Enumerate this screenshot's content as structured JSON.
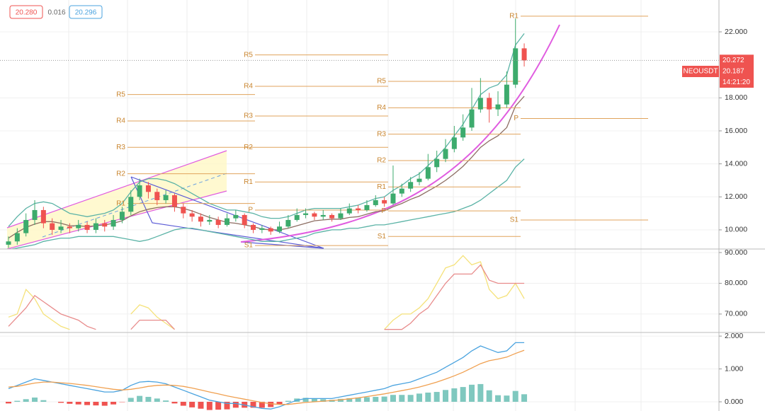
{
  "header": {
    "bid": "20.280",
    "spread": "0.016",
    "ask": "20.296"
  },
  "chart_data": [
    {
      "type": "candlestick",
      "symbol": "NEOUSDT",
      "last_price": 20.272,
      "second_price": 20.187,
      "countdown": "14:21:20",
      "colors": {
        "up": "#3dab6d",
        "down": "#ef5350"
      },
      "open": [
        9.1,
        9.3,
        9.8,
        10.6,
        11.2,
        10.4,
        10.0,
        10.2,
        10.1,
        10.3,
        10.0,
        10.4,
        10.2,
        10.6,
        11.1,
        12.0,
        12.7,
        12.3,
        11.8,
        12.1,
        11.4,
        11.0,
        10.8,
        10.5,
        10.6,
        10.3,
        10.7,
        10.9,
        10.3,
        10.0,
        10.1,
        9.9,
        10.2,
        10.6,
        10.9,
        11.0,
        10.8,
        10.9,
        10.7,
        11.0,
        11.3,
        11.2,
        11.5,
        11.8,
        11.6,
        12.2,
        12.5,
        12.9,
        13.1,
        13.8,
        14.3,
        14.9,
        15.6,
        16.2,
        17.3,
        18.0,
        17.3,
        17.6,
        18.8,
        21.0
      ],
      "high": [
        9.6,
        10.1,
        11.0,
        11.8,
        11.4,
        10.7,
        10.6,
        10.4,
        10.6,
        10.5,
        10.7,
        10.6,
        10.9,
        11.4,
        12.4,
        13.1,
        12.9,
        12.5,
        12.4,
        12.2,
        11.6,
        11.2,
        11.0,
        10.9,
        10.8,
        11.0,
        11.2,
        11.0,
        10.4,
        10.3,
        10.2,
        10.5,
        10.9,
        11.3,
        11.3,
        11.1,
        11.2,
        11.0,
        11.3,
        11.6,
        11.5,
        11.8,
        12.1,
        12.0,
        13.9,
        12.8,
        13.2,
        13.5,
        14.6,
        14.8,
        15.5,
        16.3,
        17.0,
        18.6,
        19.2,
        18.3,
        18.4,
        19.6,
        22.8,
        21.3
      ],
      "low": [
        8.9,
        9.1,
        9.6,
        10.3,
        10.1,
        9.7,
        9.8,
        9.8,
        9.9,
        9.8,
        9.8,
        9.9,
        10.0,
        10.4,
        10.9,
        11.8,
        11.9,
        11.5,
        11.6,
        11.1,
        10.7,
        10.5,
        10.2,
        10.3,
        10.1,
        10.2,
        10.5,
        10.1,
        9.8,
        9.8,
        9.7,
        9.8,
        10.1,
        10.5,
        10.7,
        10.6,
        10.6,
        10.5,
        10.6,
        10.9,
        11.0,
        11.1,
        11.4,
        11.4,
        11.5,
        12.0,
        12.3,
        12.7,
        13.0,
        13.5,
        14.1,
        14.7,
        15.4,
        16.0,
        17.1,
        16.5,
        16.9,
        17.4,
        18.6,
        19.9
      ],
      "close": [
        9.3,
        9.8,
        10.6,
        11.2,
        10.4,
        10.0,
        10.2,
        10.1,
        10.3,
        10.0,
        10.4,
        10.2,
        10.6,
        11.1,
        12.0,
        12.7,
        12.3,
        11.8,
        12.1,
        11.4,
        11.0,
        10.8,
        10.5,
        10.6,
        10.3,
        10.7,
        10.9,
        10.3,
        10.0,
        10.1,
        9.9,
        10.2,
        10.6,
        10.9,
        11.0,
        10.8,
        10.9,
        10.7,
        11.0,
        11.3,
        11.2,
        11.5,
        11.8,
        11.6,
        12.2,
        12.5,
        12.9,
        13.1,
        13.8,
        14.3,
        14.9,
        15.6,
        16.2,
        17.3,
        18.0,
        17.3,
        17.6,
        18.8,
        21.0,
        20.272
      ],
      "series": [
        {
          "color": "#5bb3a6",
          "values": [
            10.2,
            10.8,
            11.3,
            11.6,
            11.7,
            11.6,
            11.3,
            11.0,
            10.9,
            10.8,
            10.9,
            11.0,
            11.2,
            11.6,
            12.3,
            12.9,
            13.1,
            13.1,
            13.0,
            12.8,
            12.5,
            12.2,
            11.9,
            11.6,
            11.4,
            11.2,
            11.2,
            11.1,
            11.0,
            10.8,
            10.7,
            10.7,
            10.8,
            11.0,
            11.2,
            11.3,
            11.3,
            11.3,
            11.3,
            11.4,
            11.5,
            11.7,
            11.9,
            12.0,
            12.4,
            12.7,
            13.1,
            13.4,
            13.9,
            14.4,
            15.0,
            15.7,
            16.4,
            17.3,
            18.2,
            18.6,
            18.8,
            19.4,
            21.2,
            21.9
          ]
        },
        {
          "color": "#8d6e63",
          "values": [
            9.5,
            9.85,
            10.15,
            10.35,
            10.5,
            10.5,
            10.4,
            10.25,
            10.25,
            10.2,
            10.25,
            10.3,
            10.4,
            10.55,
            10.85,
            11.1,
            11.25,
            11.35,
            11.4,
            11.4,
            11.3,
            11.15,
            10.95,
            10.75,
            10.6,
            10.45,
            10.4,
            10.3,
            10.2,
            10.05,
            10.0,
            10.0,
            10.1,
            10.25,
            10.4,
            10.55,
            10.6,
            10.65,
            10.65,
            10.75,
            10.8,
            10.95,
            11.1,
            11.15,
            11.4,
            11.6,
            11.85,
            12.05,
            12.35,
            12.65,
            13.0,
            13.4,
            13.85,
            14.4,
            15.0,
            15.4,
            15.7,
            16.2,
            17.5,
            18.1
          ]
        },
        {
          "color": "#5bb3a6",
          "values": [
            8.8,
            8.9,
            9.0,
            9.1,
            9.3,
            9.4,
            9.5,
            9.5,
            9.6,
            9.6,
            9.6,
            9.6,
            9.6,
            9.5,
            9.4,
            9.3,
            9.4,
            9.6,
            9.8,
            10.0,
            10.1,
            10.1,
            10.0,
            9.9,
            9.8,
            9.7,
            9.6,
            9.5,
            9.4,
            9.3,
            9.3,
            9.3,
            9.4,
            9.5,
            9.6,
            9.8,
            9.9,
            10.0,
            10.0,
            10.1,
            10.1,
            10.2,
            10.3,
            10.3,
            10.4,
            10.5,
            10.6,
            10.7,
            10.8,
            10.9,
            11.0,
            11.1,
            11.3,
            11.5,
            11.8,
            12.2,
            12.6,
            13.0,
            13.8,
            14.3
          ]
        }
      ],
      "pivot_color": "#e0a35c",
      "pivots": [
        {
          "levels": [
            {
              "name": "R5",
              "value": 18.2
            },
            {
              "name": "R4",
              "value": 16.6
            },
            {
              "name": "R3",
              "value": 15.0
            },
            {
              "name": "R2",
              "value": 13.4
            },
            {
              "name": "R1",
              "value": 11.6
            }
          ]
        },
        {
          "levels": [
            {
              "name": "R5",
              "value": 20.6
            },
            {
              "name": "R4",
              "value": 18.7
            },
            {
              "name": "R3",
              "value": 16.9
            },
            {
              "name": "R2",
              "value": 15.0
            },
            {
              "name": "R1",
              "value": 12.9
            },
            {
              "name": "P",
              "value": 11.2
            },
            {
              "name": "S1",
              "value": 9.05
            }
          ]
        },
        {
          "levels": [
            {
              "name": "R5",
              "value": 19.0
            },
            {
              "name": "R4",
              "value": 17.4
            },
            {
              "name": "R3",
              "value": 15.8
            },
            {
              "name": "R2",
              "value": 14.2
            },
            {
              "name": "R1",
              "value": 12.6
            },
            {
              "name": "P",
              "value": 11.15
            },
            {
              "name": "S1",
              "value": 9.6
            }
          ]
        },
        {
          "levels": [
            {
              "name": "R1",
              "value": 22.95
            },
            {
              "name": "P",
              "value": 16.75
            },
            {
              "name": "S1",
              "value": 10.6
            }
          ]
        }
      ],
      "ylim": [
        8.84,
        23.93
      ],
      "yticks": [
        {
          "value": 22,
          "label": "22.000"
        },
        {
          "value": 18,
          "label": "18.000"
        },
        {
          "value": 16,
          "label": "16.000"
        },
        {
          "value": 14,
          "label": "14.000"
        },
        {
          "value": 12,
          "label": "12.000"
        },
        {
          "value": 10,
          "label": "10.000"
        }
      ]
    },
    {
      "type": "line",
      "ylim": [
        64,
        91.15
      ],
      "yticks": [
        {
          "value": 90,
          "label": "90.000"
        },
        {
          "value": 80,
          "label": "80.000"
        },
        {
          "value": 70,
          "label": "70.000"
        }
      ],
      "series": [
        {
          "color": "#f5e27a",
          "values": [
            69,
            70,
            78,
            75,
            70,
            68,
            66,
            65,
            null,
            null,
            null,
            null,
            null,
            null,
            70,
            73,
            72,
            69,
            67,
            65,
            null,
            null,
            null,
            null,
            null,
            null,
            null,
            null,
            null,
            null,
            null,
            null,
            null,
            null,
            null,
            null,
            null,
            null,
            null,
            null,
            null,
            null,
            null,
            65,
            68,
            70,
            70,
            72,
            75,
            80,
            85,
            86,
            89,
            86,
            87,
            78,
            75,
            76,
            80,
            75
          ]
        },
        {
          "color": "#e88c8c",
          "values": [
            66,
            69,
            72,
            76,
            74,
            72,
            70,
            69,
            68,
            66,
            65,
            null,
            null,
            null,
            65,
            68,
            68,
            68,
            68,
            65,
            null,
            null,
            null,
            null,
            null,
            null,
            null,
            null,
            null,
            null,
            null,
            null,
            null,
            null,
            null,
            null,
            null,
            null,
            null,
            null,
            null,
            null,
            null,
            65,
            65,
            65,
            67,
            70,
            72,
            76,
            80,
            83,
            83,
            83,
            86,
            81,
            80,
            80,
            80,
            80
          ]
        }
      ]
    },
    {
      "type": "macd",
      "ylim": [
        -0.28,
        2.11
      ],
      "yticks": [
        {
          "value": 2,
          "label": "2.000"
        },
        {
          "value": 1,
          "label": "1.000"
        },
        {
          "value": 0,
          "label": "0.000"
        }
      ],
      "colors": {
        "up": "#7fc8bf",
        "down": "#ef5350"
      },
      "histogram": [
        -0.05,
        0.03,
        0.08,
        0.13,
        0.05,
        0,
        -0.03,
        -0.06,
        -0.08,
        -0.1,
        -0.11,
        -0.12,
        -0.08,
        -0.01,
        0.12,
        0.18,
        0.15,
        0.1,
        0.04,
        -0.05,
        -0.12,
        -0.17,
        -0.21,
        -0.25,
        -0.24,
        -0.23,
        -0.18,
        -0.18,
        -0.18,
        -0.18,
        -0.16,
        -0.07,
        0.03,
        0.1,
        0.12,
        0.1,
        0.08,
        0.06,
        0.09,
        0.11,
        0.13,
        0.14,
        0.15,
        0.16,
        0.21,
        0.21,
        0.21,
        0.25,
        0.28,
        0.3,
        0.36,
        0.41,
        0.45,
        0.52,
        0.54,
        0.35,
        0.2,
        0.19,
        0.33,
        0.23
      ],
      "series": [
        {
          "color": "#4aa3df",
          "values": [
            0.4,
            0.5,
            0.6,
            0.7,
            0.65,
            0.6,
            0.55,
            0.5,
            0.45,
            0.4,
            0.35,
            0.3,
            0.3,
            0.35,
            0.5,
            0.6,
            0.62,
            0.6,
            0.55,
            0.45,
            0.35,
            0.25,
            0.15,
            0.05,
            0.0,
            -0.05,
            -0.05,
            -0.1,
            -0.15,
            -0.2,
            -0.22,
            -0.15,
            -0.05,
            0.05,
            0.1,
            0.1,
            0.1,
            0.1,
            0.15,
            0.2,
            0.25,
            0.3,
            0.35,
            0.4,
            0.5,
            0.55,
            0.6,
            0.7,
            0.8,
            0.9,
            1.05,
            1.2,
            1.35,
            1.55,
            1.7,
            1.6,
            1.5,
            1.55,
            1.8,
            1.8
          ]
        },
        {
          "color": "#f0a050",
          "values": [
            0.45,
            0.47,
            0.52,
            0.57,
            0.6,
            0.6,
            0.58,
            0.56,
            0.53,
            0.5,
            0.46,
            0.42,
            0.38,
            0.36,
            0.38,
            0.42,
            0.47,
            0.5,
            0.51,
            0.5,
            0.47,
            0.42,
            0.36,
            0.3,
            0.24,
            0.18,
            0.13,
            0.08,
            0.03,
            -0.02,
            -0.06,
            -0.08,
            -0.08,
            -0.05,
            -0.02,
            0.0,
            0.02,
            0.04,
            0.06,
            0.09,
            0.12,
            0.16,
            0.2,
            0.24,
            0.29,
            0.34,
            0.39,
            0.45,
            0.52,
            0.6,
            0.69,
            0.79,
            0.9,
            1.03,
            1.16,
            1.25,
            1.3,
            1.36,
            1.47,
            1.57
          ]
        }
      ]
    }
  ]
}
